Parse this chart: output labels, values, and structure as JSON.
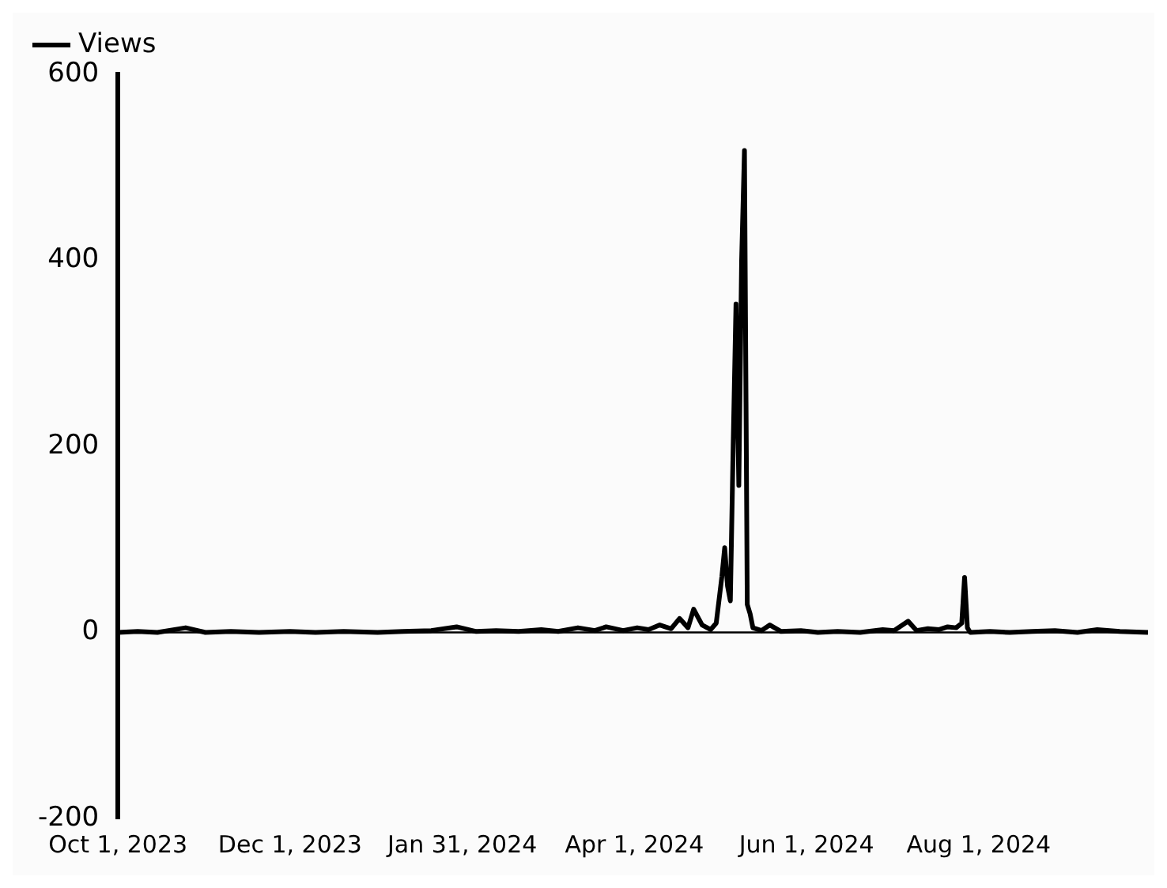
{
  "chart_data": {
    "type": "line",
    "legend": "top left",
    "grid": false,
    "marker": "none",
    "line_style": "solid",
    "xlim": [
      "2023-10-01",
      "2024-09-30"
    ],
    "xticks": [
      {
        "value": "2023-10-01",
        "label": "Oct 1, 2023"
      },
      {
        "value": "2023-12-01",
        "label": "Dec 1, 2023"
      },
      {
        "value": "2024-01-31",
        "label": "Jan 31, 2024"
      },
      {
        "value": "2024-04-01",
        "label": "Apr 1, 2024"
      },
      {
        "value": "2024-06-01",
        "label": "Jun 1, 2024"
      },
      {
        "value": "2024-08-01",
        "label": "Aug 1, 2024"
      }
    ],
    "ref_lines": [
      {
        "axis": "y",
        "value": 0,
        "color": "#000000"
      }
    ],
    "ylim": [
      -200,
      600
    ],
    "yticks": [
      -200,
      0,
      200,
      400,
      600
    ],
    "x": [
      "2023-10-01",
      "2023-10-08",
      "2023-10-15",
      "2023-10-25",
      "2023-11-01",
      "2023-11-10",
      "2023-11-20",
      "2023-12-01",
      "2023-12-10",
      "2023-12-20",
      "2024-01-01",
      "2024-01-10",
      "2024-01-20",
      "2024-01-29",
      "2024-02-05",
      "2024-02-12",
      "2024-02-20",
      "2024-02-28",
      "2024-03-05",
      "2024-03-12",
      "2024-03-18",
      "2024-03-22",
      "2024-03-28",
      "2024-04-02",
      "2024-04-06",
      "2024-04-10",
      "2024-04-14",
      "2024-04-17",
      "2024-04-20",
      "2024-04-22",
      "2024-04-25",
      "2024-04-28",
      "2024-04-30",
      "2024-05-02",
      "2024-05-03",
      "2024-05-04",
      "2024-05-05",
      "2024-05-06",
      "2024-05-07",
      "2024-05-08",
      "2024-05-09",
      "2024-05-10",
      "2024-05-11",
      "2024-05-12",
      "2024-05-13",
      "2024-05-16",
      "2024-05-19",
      "2024-05-23",
      "2024-05-30",
      "2024-06-05",
      "2024-06-12",
      "2024-06-20",
      "2024-06-28",
      "2024-07-02",
      "2024-07-07",
      "2024-07-10",
      "2024-07-14",
      "2024-07-18",
      "2024-07-21",
      "2024-07-24",
      "2024-07-26",
      "2024-07-27",
      "2024-07-28",
      "2024-07-29",
      "2024-08-05",
      "2024-08-12",
      "2024-08-20",
      "2024-08-28",
      "2024-09-05",
      "2024-09-12",
      "2024-09-20",
      "2024-09-30"
    ],
    "series": [
      {
        "name": "Views",
        "color": "#000000",
        "values": [
          0,
          1,
          0,
          5,
          0,
          1,
          0,
          1,
          0,
          1,
          0,
          1,
          2,
          6,
          1,
          2,
          1,
          3,
          1,
          5,
          2,
          6,
          2,
          5,
          3,
          8,
          4,
          15,
          5,
          25,
          8,
          3,
          10,
          60,
          91,
          50,
          34,
          200,
          353,
          158,
          400,
          518,
          30,
          20,
          5,
          2,
          8,
          1,
          2,
          0,
          1,
          0,
          3,
          2,
          12,
          2,
          4,
          3,
          6,
          5,
          10,
          59,
          5,
          0,
          1,
          0,
          1,
          2,
          0,
          3,
          1,
          0
        ]
      }
    ]
  }
}
